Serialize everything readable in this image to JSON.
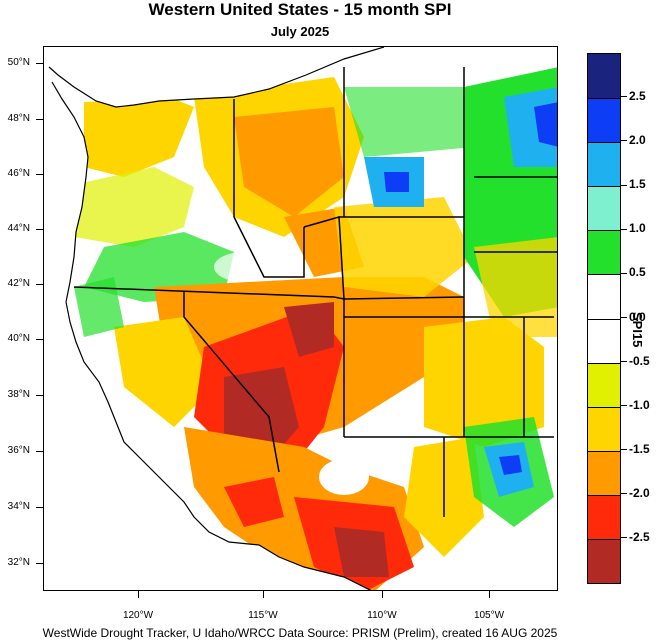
{
  "title": "Western United States - 15 month SPI",
  "subtitle": "July 2025",
  "footer": "WestWide Drought Tracker, U Idaho/WRCC Data Source: PRISM (Prelim), created 16 AUG 2025",
  "lat_labels": [
    "50°N",
    "48°N",
    "46°N",
    "44°N",
    "42°N",
    "40°N",
    "38°N",
    "36°N",
    "34°N",
    "32°N"
  ],
  "lon_labels": [
    "120°W",
    "115°W",
    "110°W",
    "105°W"
  ],
  "colorbar": {
    "title": "SPI15",
    "labels": [
      "2.5",
      "2.0",
      "1.5",
      "1.0",
      "0.5",
      "0.0",
      "-0.5",
      "-1.0",
      "-1.5",
      "-2.0",
      "-2.5"
    ],
    "colors": [
      "#1a237e",
      "#0d3ef5",
      "#1fb0f0",
      "#7ff0cf",
      "#23e02c",
      "#ffffff",
      "#ffffff",
      "#e0f000",
      "#ffd500",
      "#ff9a00",
      "#ff2a0a",
      "#b22a24"
    ]
  },
  "map_colors": {
    "drought_extreme": "#b22a24",
    "drought_severe": "#ff2a0a",
    "drought_moderate": "#ff9a00",
    "dry": "#ffd500",
    "slightly_dry": "#e0f000",
    "normal": "#ffffff",
    "wet": "#23e02c",
    "very_wet": "#1fb0f0",
    "extreme_wet": "#0d3ef5"
  }
}
